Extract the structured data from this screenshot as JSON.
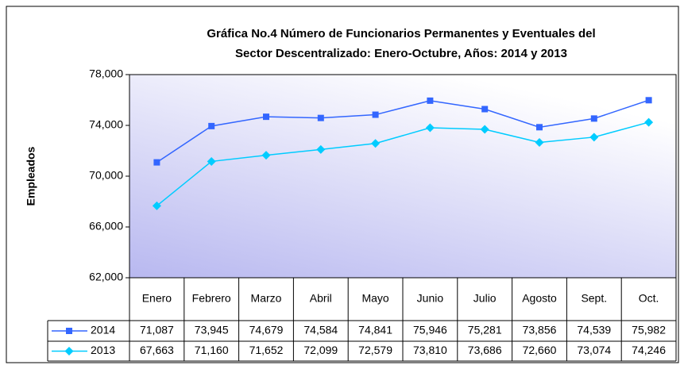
{
  "chart_data": {
    "type": "line",
    "title": [
      "Gráfica No.4 Número de Funcionarios Permanentes y Eventuales del",
      "Sector Descentralizado: Enero-Octubre, Años: 2014 y 2013"
    ],
    "y_label": "Empleados",
    "categories": [
      "Enero",
      "Febrero",
      "Marzo",
      "Abril",
      "Mayo",
      "Junio",
      "Julio",
      "Agosto",
      "Sept.",
      "Oct."
    ],
    "series": [
      {
        "name": "2014",
        "color": "#3366ff",
        "marker": "square",
        "values": [
          71087,
          73945,
          74679,
          74584,
          74841,
          75946,
          75281,
          73856,
          74539,
          75982
        ],
        "value_labels": [
          "71,087",
          "73,945",
          "74,679",
          "74,584",
          "74,841",
          "75,946",
          "75,281",
          "73,856",
          "74,539",
          "75,982"
        ]
      },
      {
        "name": "2013",
        "color": "#00ccff",
        "marker": "diamond",
        "values": [
          67663,
          71160,
          71652,
          72099,
          72579,
          73810,
          73686,
          72660,
          73074,
          74246
        ],
        "value_labels": [
          "67,663",
          "71,160",
          "71,652",
          "72,099",
          "72,579",
          "73,810",
          "73,686",
          "72,660",
          "73,074",
          "74,246"
        ]
      }
    ],
    "ylim": [
      62000,
      78000
    ],
    "yticks": [
      {
        "value": 62000,
        "label": "62,000"
      },
      {
        "value": 66000,
        "label": "66,000"
      },
      {
        "value": 70000,
        "label": "70,000"
      },
      {
        "value": 74000,
        "label": "74,000"
      },
      {
        "value": 78000,
        "label": "78,000"
      }
    ],
    "grid": false
  }
}
